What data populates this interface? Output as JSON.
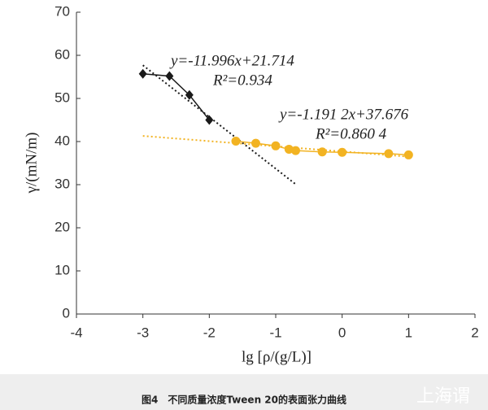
{
  "chart_data": {
    "type": "scatter",
    "x_label": "lg [ρ/(g/L)]",
    "y_label": "γ/(mN/m)",
    "caption": "图4　不同质量浓度Tween 20的表面张力曲线",
    "watermark": "上海谓",
    "xlim": [
      -4,
      2
    ],
    "xticks": [
      -4,
      -3,
      -2,
      -1,
      0,
      1,
      2
    ],
    "ylim": [
      0,
      70
    ],
    "yticks": [
      0,
      10,
      20,
      30,
      40,
      50,
      60,
      70
    ],
    "grid": false,
    "series": [
      {
        "color": "#1a1a1a",
        "marker": "diamond",
        "x": [
          -3,
          -2.6,
          -2.3,
          -2
        ],
        "values": [
          55.7,
          55.2,
          50.8,
          45
        ]
      },
      {
        "color": "#f2b322",
        "marker": "circle",
        "x": [
          -1.6,
          -1.3,
          -1,
          -0.8,
          -0.7,
          -0.3,
          0,
          0.7,
          1
        ],
        "values": [
          40.1,
          39.6,
          39,
          38.2,
          37.9,
          37.6,
          37.5,
          37.2,
          36.9
        ]
      }
    ],
    "fit_lines": [
      {
        "color": "#1a1a1a",
        "x": [
          -3,
          -0.7
        ],
        "values": [
          57.7,
          30.1
        ]
      },
      {
        "color": "#f2b322",
        "x": [
          -3,
          1
        ],
        "values": [
          41.3,
          36.5
        ]
      }
    ],
    "annotations": [
      "y=-11.996x+21.714",
      "R²=0.934",
      "y=-1.191 2x+37.676",
      "R²=0.860 4"
    ]
  }
}
